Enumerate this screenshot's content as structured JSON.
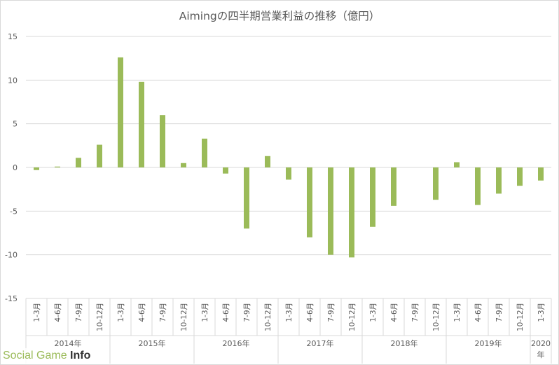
{
  "chart_data": {
    "type": "bar",
    "title": "Aimingの四半期営業利益の推移（億円）",
    "ylim": [
      -15,
      15
    ],
    "yticks": [
      -15,
      -10,
      -5,
      0,
      5,
      10,
      15
    ],
    "ytick_labels": [
      "-15",
      "-10",
      "-5",
      "0",
      "5",
      "10",
      "15"
    ],
    "grid": true,
    "bar_color": "#9bbb59",
    "categories": [
      "1-3月",
      "4-6月",
      "7-9月",
      "10-12月",
      "1-3月",
      "4-6月",
      "7-9月",
      "10-12月",
      "1-3月",
      "4-6月",
      "7-9月",
      "10-12月",
      "1-3月",
      "4-6月",
      "7-9月",
      "10-12月",
      "1-3月",
      "4-6月",
      "7-9月",
      "10-12月",
      "1-3月",
      "4-6月",
      "7-9月",
      "10-12月",
      "1-3月"
    ],
    "years": [
      {
        "label": "2014年",
        "count": 4
      },
      {
        "label": "2015年",
        "count": 4
      },
      {
        "label": "2016年",
        "count": 4
      },
      {
        "label": "2017年",
        "count": 4
      },
      {
        "label": "2018年",
        "count": 4
      },
      {
        "label": "2019年",
        "count": 4
      },
      {
        "label": "2020\n年",
        "count": 1
      }
    ],
    "values": [
      -0.3,
      0.1,
      1.1,
      2.6,
      12.6,
      9.8,
      6.0,
      0.5,
      3.3,
      -0.7,
      -7.0,
      1.3,
      -1.4,
      -8.0,
      -10.0,
      -10.3,
      -6.8,
      -4.4,
      0.0,
      -3.7,
      0.6,
      -4.3,
      -3.0,
      -2.1,
      -1.5
    ]
  },
  "watermark": {
    "social_game": "Social Game",
    "info": "Info"
  }
}
